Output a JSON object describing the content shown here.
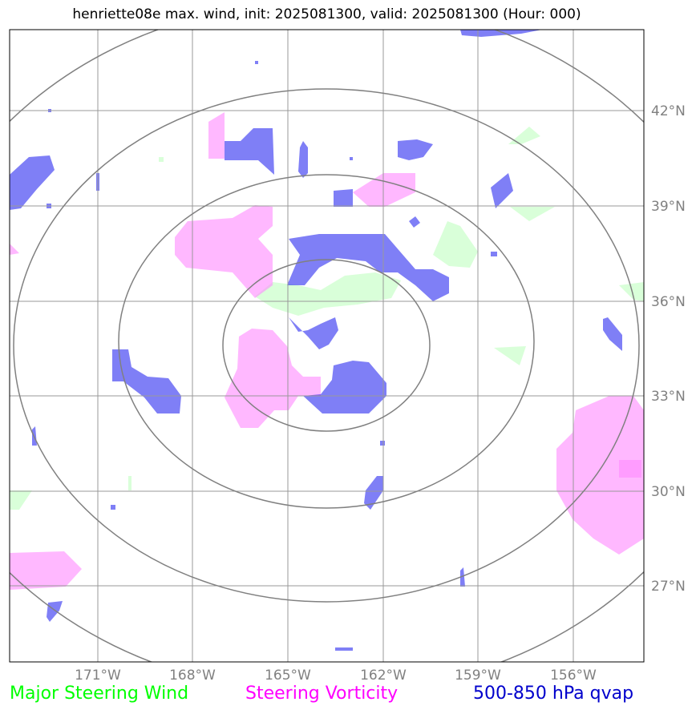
{
  "title": "henriette08e max. wind, init: 2025081300, valid: 2025081300 (Hour: 000)",
  "map": {
    "lon_ticks": [
      "171°W",
      "168°W",
      "165°W",
      "162°W",
      "159°W",
      "156°W"
    ],
    "lat_ticks": [
      "42°N",
      "39°N",
      "36°N",
      "33°N",
      "30°N",
      "27°N"
    ],
    "grid": true,
    "range_rings": 4
  },
  "legend": {
    "wind": "Major Steering Wind",
    "vorticity": "Steering Vorticity",
    "qvap": "500-850 hPa qvap"
  },
  "colors": {
    "wind": "#00ff00",
    "vorticity": "#ff00ff",
    "qvap": "#0000cc",
    "ring": "#808080"
  }
}
